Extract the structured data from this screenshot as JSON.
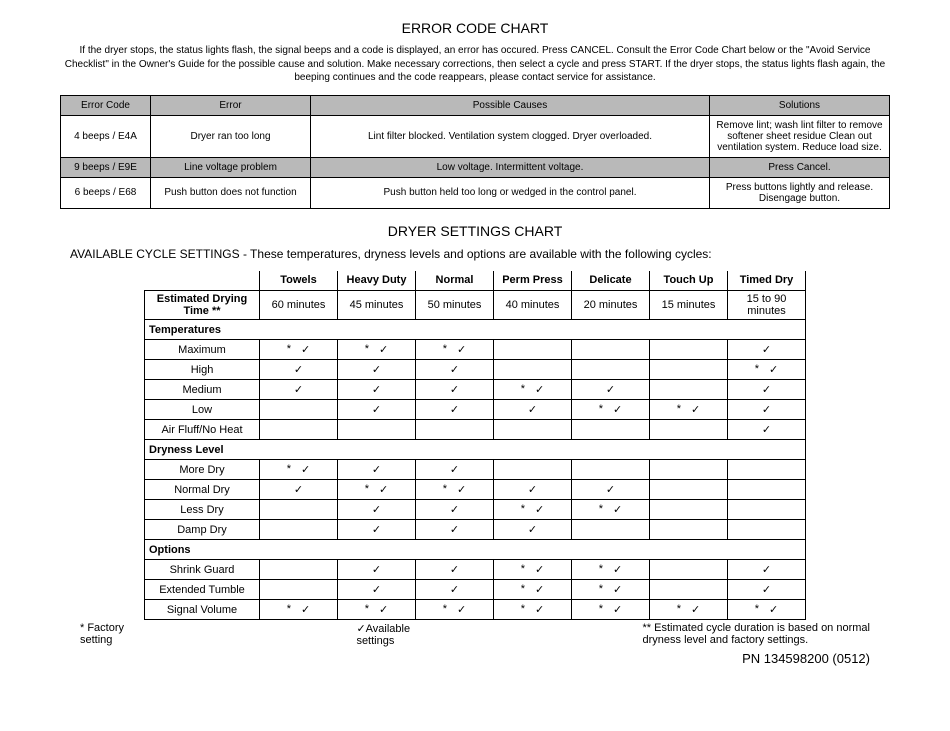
{
  "title1": "ERROR CODE CHART",
  "intro": "If the dryer stops, the status lights flash, the signal beeps and a code is displayed, an error has occured. Press CANCEL.  Consult the Error Code Chart below or the \"Avoid Service Checklist\" in the Owner's Guide for the possible cause and solution.  Make necessary corrections, then select a cycle and press START.  If the dryer stops, the status lights flash again, the beeping continues and the code reappears, please contact service for assistance.",
  "error_table": {
    "headers": [
      "Error Code",
      "Error",
      "Possible Causes",
      "Solutions"
    ],
    "col_widths": [
      "90px",
      "160px",
      "auto",
      "180px"
    ],
    "rows": [
      {
        "shaded": false,
        "cells": [
          "4 beeps / E4A",
          "Dryer ran too long",
          "Lint filter blocked.  Ventilation system clogged.  Dryer overloaded.",
          "Remove lint; wash lint filter to remove softener sheet residue Clean out ventilation system. Reduce load size."
        ]
      },
      {
        "shaded": true,
        "cells": [
          "9 beeps / E9E",
          "Line voltage problem",
          "Low voltage.  Intermittent voltage.",
          "Press Cancel."
        ]
      },
      {
        "shaded": false,
        "cells": [
          "6 beeps / E68",
          "Push button does not function",
          "Push button held too long or wedged in the control panel.",
          "Press buttons lightly and release. Disengage button."
        ]
      }
    ]
  },
  "title2": "DRYER SETTINGS CHART",
  "subtitle": "AVAILABLE CYCLE SETTINGS - These temperatures, dryness levels and options are available with the following cycles:",
  "cycles": [
    "Towels",
    "Heavy Duty",
    "Normal",
    "Perm Press",
    "Delicate",
    "Touch Up",
    "Timed Dry"
  ],
  "est_label": "Estimated Drying Time **",
  "est_values": [
    "60 minutes",
    "45 minutes",
    "50 minutes",
    "40 minutes",
    "20 minutes",
    "15 minutes",
    "15 to 90 minutes"
  ],
  "sections": [
    {
      "name": "Temperatures",
      "rows": [
        {
          "label": "Maximum",
          "cells": [
            "sc",
            "sc",
            "sc",
            "",
            "",
            "",
            "c"
          ]
        },
        {
          "label": "High",
          "cells": [
            "c",
            "c",
            "c",
            "",
            "",
            "",
            "sc"
          ]
        },
        {
          "label": "Medium",
          "cells": [
            "c",
            "c",
            "c",
            "sc",
            "c",
            "",
            "c"
          ]
        },
        {
          "label": "Low",
          "cells": [
            "",
            "c",
            "c",
            "c",
            "sc",
            "sc",
            "c"
          ]
        },
        {
          "label": "Air Fluff/No Heat",
          "cells": [
            "",
            "",
            "",
            "",
            "",
            "",
            "c"
          ]
        }
      ]
    },
    {
      "name": "Dryness Level",
      "rows": [
        {
          "label": "More Dry",
          "cells": [
            "sc",
            "c",
            "c",
            "",
            "",
            "",
            ""
          ]
        },
        {
          "label": "Normal Dry",
          "cells": [
            "c",
            "sc",
            "sc",
            "c",
            "c",
            "",
            ""
          ]
        },
        {
          "label": "Less Dry",
          "cells": [
            "",
            "c",
            "c",
            "sc",
            "sc",
            "",
            ""
          ]
        },
        {
          "label": "Damp Dry",
          "cells": [
            "",
            "c",
            "c",
            "c",
            "",
            "",
            ""
          ]
        }
      ]
    },
    {
      "name": "Options",
      "rows": [
        {
          "label": "Shrink Guard",
          "cells": [
            "",
            "c",
            "c",
            "sc",
            "sc",
            "",
            "c"
          ]
        },
        {
          "label": "Extended Tumble",
          "cells": [
            "",
            "c",
            "c",
            "sc",
            "sc",
            "",
            "c"
          ]
        },
        {
          "label": "Signal Volume",
          "cells": [
            "sc",
            "sc",
            "sc",
            "sc",
            "sc",
            "sc",
            "sc"
          ]
        }
      ]
    }
  ],
  "footnotes": {
    "factory": "* Factory\n  setting",
    "available": "✓Available\n  settings",
    "estimated": "** Estimated cycle duration is based on normal\n   dryness level and factory settings."
  },
  "pn": "PN 134598200  (0512)"
}
